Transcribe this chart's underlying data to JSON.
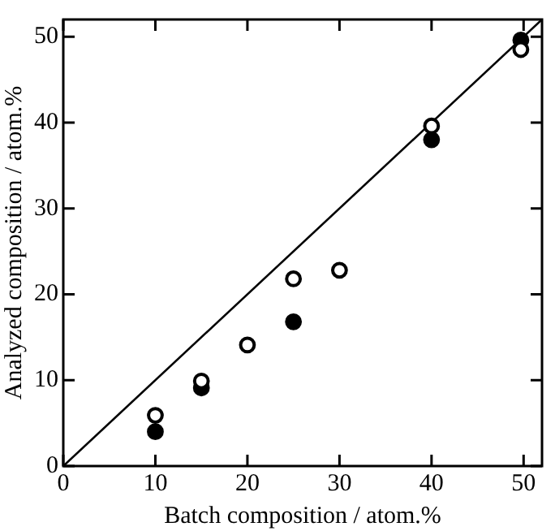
{
  "chart_data": {
    "type": "scatter",
    "xlabel": "Batch composition / atom.%",
    "ylabel": "Analyzed composition / atom.%",
    "xlim": [
      0,
      52
    ],
    "ylim": [
      0,
      52
    ],
    "xticks": [
      0,
      10,
      20,
      30,
      40,
      50
    ],
    "yticks": [
      0,
      10,
      20,
      30,
      40,
      50
    ],
    "grid": false,
    "legend": false,
    "marker": "circle",
    "series": [
      {
        "color": "#000000",
        "x": [
          10,
          15,
          20,
          25,
          30,
          40,
          49.7
        ],
        "values": [
          5.9,
          9.9,
          14.1,
          21.8,
          22.8,
          39.6,
          48.5
        ]
      },
      {
        "color": "#000000",
        "x": [
          10,
          15,
          25,
          40,
          49.7
        ],
        "values": [
          4.0,
          9.1,
          16.8,
          38.0,
          49.6
        ]
      },
      {
        "type": "line",
        "color": "#000000",
        "marker": "none",
        "line_style": "solid",
        "x": [
          0,
          52
        ],
        "values": [
          0,
          52
        ]
      }
    ]
  }
}
